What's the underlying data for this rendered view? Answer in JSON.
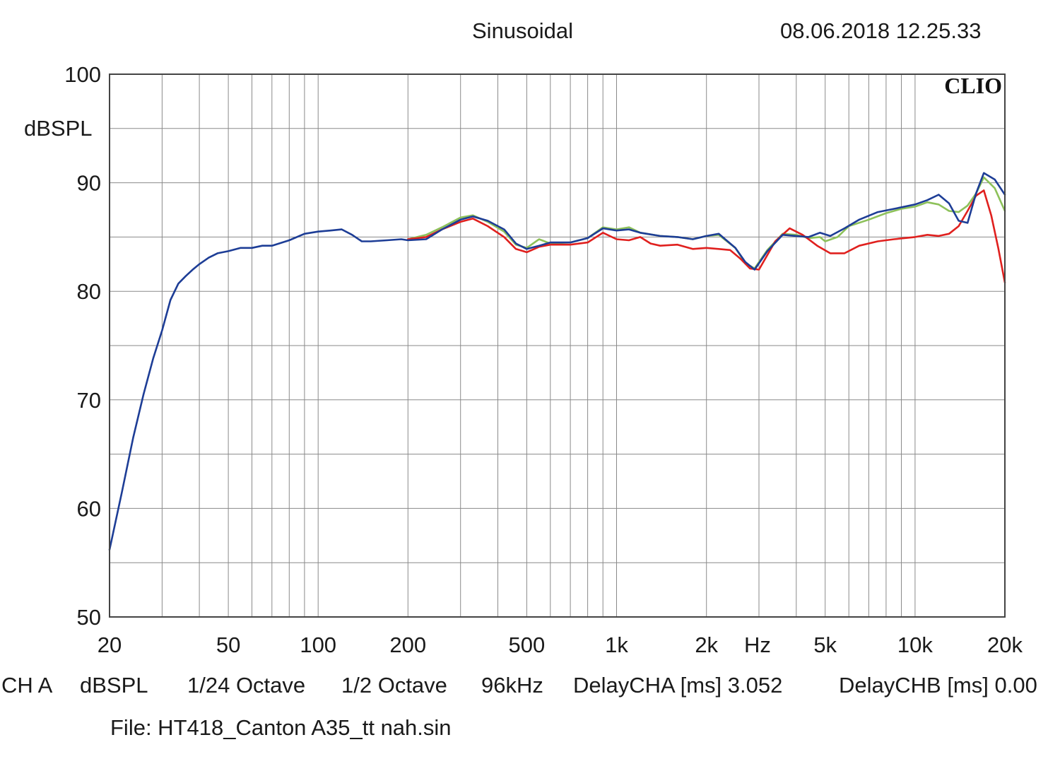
{
  "header": {
    "title": "Sinusoidal",
    "timestamp": "08.06.2018 12.25.33"
  },
  "footer": {
    "settings": [
      "CH A",
      "dBSPL",
      "1/24 Octave",
      "1/2 Octave",
      "96kHz",
      "DelayCHA [ms] 3.052",
      "DelayCHB [ms] 0.00"
    ],
    "file": "File: HT418_Canton A35_tt nah.sin"
  },
  "chart_data": {
    "type": "line",
    "title": "Sinusoidal",
    "brand": "CLIO",
    "xlabel": "Hz",
    "ylabel": "dBSPL",
    "xscale": "log",
    "xlim": [
      20,
      20000
    ],
    "ylim": [
      50,
      100
    ],
    "grid": true,
    "x_tick_values": [
      20,
      50,
      100,
      200,
      500,
      1000,
      2000,
      5000,
      10000,
      20000
    ],
    "x_tick_labels": [
      "20",
      "50",
      "100",
      "200",
      "500",
      "1k",
      "2k",
      "5k",
      "10k",
      "20k"
    ],
    "y_tick_values": [
      50,
      60,
      70,
      80,
      90,
      100
    ],
    "y_tick_labels": [
      "50",
      "60",
      "70",
      "80",
      "90",
      "100"
    ],
    "colors": {
      "green": "#8dc15a",
      "red": "#e0201e",
      "blue": "#1d3d96",
      "grid": "#8a8a8a",
      "frame": "#444444"
    },
    "series": [
      {
        "color": "#8dc15a",
        "points": [
          [
            200,
            84.8
          ],
          [
            230,
            85.2
          ],
          [
            260,
            85.9
          ],
          [
            300,
            86.8
          ],
          [
            330,
            87.0
          ],
          [
            370,
            86.4
          ],
          [
            420,
            85.5
          ],
          [
            460,
            84.3
          ],
          [
            500,
            84.0
          ],
          [
            550,
            84.8
          ],
          [
            600,
            84.4
          ],
          [
            700,
            84.5
          ],
          [
            800,
            84.9
          ],
          [
            900,
            85.9
          ],
          [
            1000,
            85.7
          ],
          [
            1100,
            85.9
          ],
          [
            1200,
            85.4
          ],
          [
            1400,
            85.1
          ],
          [
            1600,
            85.0
          ],
          [
            1800,
            84.8
          ],
          [
            2000,
            85.1
          ],
          [
            2200,
            85.2
          ],
          [
            2500,
            84.0
          ],
          [
            2700,
            82.6
          ],
          [
            2900,
            82.1
          ],
          [
            3200,
            83.8
          ],
          [
            3600,
            85.3
          ],
          [
            4000,
            85.2
          ],
          [
            4400,
            84.9
          ],
          [
            4800,
            85.0
          ],
          [
            5000,
            84.6
          ],
          [
            5500,
            85.0
          ],
          [
            6000,
            86.0
          ],
          [
            7000,
            86.6
          ],
          [
            8000,
            87.2
          ],
          [
            9000,
            87.6
          ],
          [
            10000,
            87.8
          ],
          [
            11000,
            88.2
          ],
          [
            12000,
            88.0
          ],
          [
            13000,
            87.4
          ],
          [
            14000,
            87.3
          ],
          [
            15000,
            87.9
          ],
          [
            16000,
            89.0
          ],
          [
            17000,
            90.5
          ],
          [
            18500,
            89.5
          ],
          [
            20000,
            87.4
          ]
        ]
      },
      {
        "color": "#e0201e",
        "points": [
          [
            200,
            84.8
          ],
          [
            230,
            85.0
          ],
          [
            260,
            85.7
          ],
          [
            300,
            86.4
          ],
          [
            330,
            86.7
          ],
          [
            370,
            86.0
          ],
          [
            420,
            85.0
          ],
          [
            460,
            83.9
          ],
          [
            500,
            83.6
          ],
          [
            550,
            84.1
          ],
          [
            600,
            84.3
          ],
          [
            700,
            84.3
          ],
          [
            800,
            84.5
          ],
          [
            900,
            85.4
          ],
          [
            1000,
            84.8
          ],
          [
            1100,
            84.7
          ],
          [
            1200,
            85.0
          ],
          [
            1300,
            84.4
          ],
          [
            1400,
            84.2
          ],
          [
            1600,
            84.3
          ],
          [
            1800,
            83.9
          ],
          [
            2000,
            84.0
          ],
          [
            2200,
            83.9
          ],
          [
            2400,
            83.8
          ],
          [
            2600,
            83.0
          ],
          [
            2800,
            82.1
          ],
          [
            3000,
            82.0
          ],
          [
            3400,
            84.6
          ],
          [
            3800,
            85.8
          ],
          [
            4200,
            85.2
          ],
          [
            4700,
            84.2
          ],
          [
            5200,
            83.5
          ],
          [
            5800,
            83.5
          ],
          [
            6500,
            84.2
          ],
          [
            7500,
            84.6
          ],
          [
            8500,
            84.8
          ],
          [
            10000,
            85.0
          ],
          [
            11000,
            85.2
          ],
          [
            12000,
            85.1
          ],
          [
            13000,
            85.3
          ],
          [
            14000,
            86.0
          ],
          [
            15000,
            87.4
          ],
          [
            16000,
            88.8
          ],
          [
            17000,
            89.3
          ],
          [
            18000,
            87.0
          ],
          [
            19000,
            84.0
          ],
          [
            20000,
            80.8
          ]
        ]
      },
      {
        "color": "#1d3d96",
        "points": [
          [
            20,
            56.2
          ],
          [
            22,
            61.5
          ],
          [
            24,
            66.5
          ],
          [
            26,
            70.5
          ],
          [
            28,
            73.8
          ],
          [
            30,
            76.4
          ],
          [
            32,
            79.2
          ],
          [
            34,
            80.7
          ],
          [
            36,
            81.4
          ],
          [
            38,
            82.0
          ],
          [
            40,
            82.5
          ],
          [
            43,
            83.1
          ],
          [
            46,
            83.5
          ],
          [
            50,
            83.7
          ],
          [
            55,
            84.0
          ],
          [
            60,
            84.0
          ],
          [
            65,
            84.2
          ],
          [
            70,
            84.2
          ],
          [
            80,
            84.7
          ],
          [
            90,
            85.3
          ],
          [
            100,
            85.5
          ],
          [
            110,
            85.6
          ],
          [
            120,
            85.7
          ],
          [
            130,
            85.2
          ],
          [
            140,
            84.6
          ],
          [
            150,
            84.6
          ],
          [
            170,
            84.7
          ],
          [
            190,
            84.8
          ],
          [
            200,
            84.7
          ],
          [
            230,
            84.8
          ],
          [
            260,
            85.7
          ],
          [
            300,
            86.6
          ],
          [
            330,
            86.9
          ],
          [
            370,
            86.5
          ],
          [
            420,
            85.7
          ],
          [
            460,
            84.4
          ],
          [
            500,
            83.9
          ],
          [
            550,
            84.2
          ],
          [
            600,
            84.5
          ],
          [
            700,
            84.5
          ],
          [
            800,
            84.9
          ],
          [
            900,
            85.8
          ],
          [
            1000,
            85.6
          ],
          [
            1100,
            85.7
          ],
          [
            1200,
            85.4
          ],
          [
            1400,
            85.1
          ],
          [
            1600,
            85.0
          ],
          [
            1800,
            84.8
          ],
          [
            2000,
            85.1
          ],
          [
            2200,
            85.3
          ],
          [
            2500,
            84.0
          ],
          [
            2700,
            82.7
          ],
          [
            2900,
            82.0
          ],
          [
            3200,
            83.7
          ],
          [
            3600,
            85.2
          ],
          [
            4000,
            85.1
          ],
          [
            4400,
            85.0
          ],
          [
            4800,
            85.4
          ],
          [
            5200,
            85.1
          ],
          [
            5800,
            85.8
          ],
          [
            6500,
            86.6
          ],
          [
            7500,
            87.3
          ],
          [
            8500,
            87.6
          ],
          [
            10000,
            88.0
          ],
          [
            11000,
            88.4
          ],
          [
            12000,
            88.9
          ],
          [
            13000,
            88.1
          ],
          [
            14000,
            86.5
          ],
          [
            15000,
            86.3
          ],
          [
            16000,
            89.0
          ],
          [
            17000,
            90.9
          ],
          [
            18500,
            90.3
          ],
          [
            20000,
            88.9
          ]
        ]
      }
    ]
  }
}
